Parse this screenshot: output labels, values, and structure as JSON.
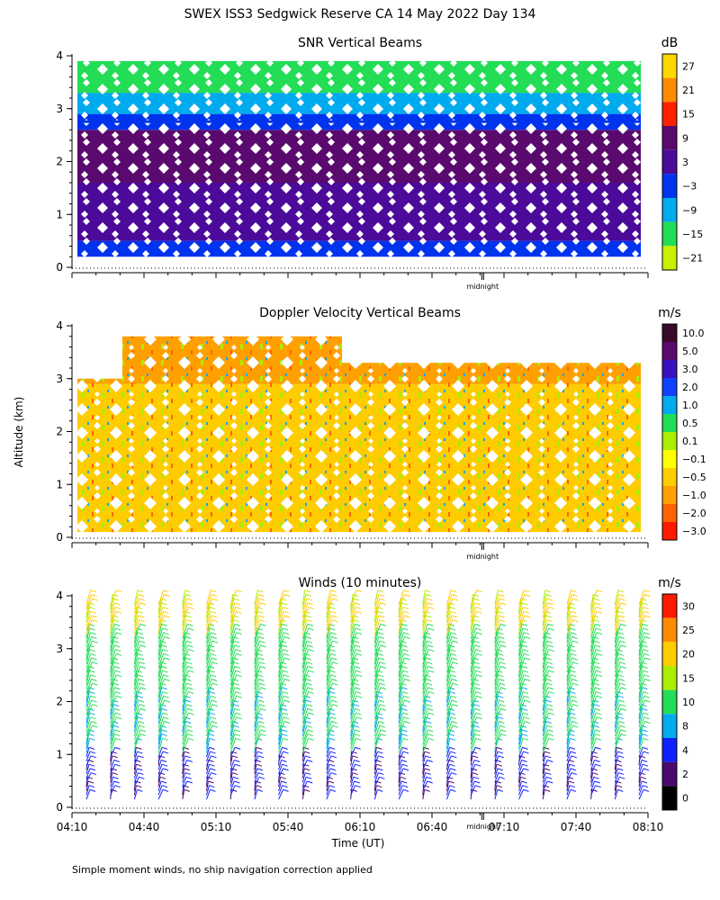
{
  "title": "SWEX ISS3 Sedgwick Reserve CA  14 May 2022 Day 134",
  "ylabel": "Altitude (km)",
  "xlabel": "Time (UT)",
  "footnote": "Simple moment winds, no ship navigation correction applied",
  "chart_data": [
    {
      "type": "heatmap",
      "title": "SNR Vertical Beams",
      "ylabel": "Altitude (km)",
      "ylim": [
        0,
        4
      ],
      "yticks": [
        "0",
        "1",
        "2",
        "3",
        "4"
      ],
      "x_tick_labels": [],
      "x_marker": "midnight",
      "colorbar_unit": "dB",
      "colorbar_labels": [
        "27",
        "21",
        "15",
        "9",
        "3",
        "−3",
        "−9",
        "−15",
        "−21"
      ],
      "colorbar_colors": [
        "#ffd700",
        "#ff8c00",
        "#ff2000",
        "#5a0a6e",
        "#4b0a9a",
        "#0033ee",
        "#00aaee",
        "#22dd55",
        "#c8f000"
      ],
      "layers": [
        {
          "alt_range": [
            0.2,
            0.5
          ],
          "level": "−3",
          "color": "#0033ee"
        },
        {
          "alt_range": [
            0.5,
            1.6
          ],
          "level": "3",
          "color": "#4b0a9a"
        },
        {
          "alt_range": [
            1.6,
            2.6
          ],
          "level": "9",
          "color": "#5a0a6e"
        },
        {
          "alt_range": [
            2.6,
            2.9
          ],
          "level": "−3",
          "color": "#0033ee"
        },
        {
          "alt_range": [
            2.9,
            3.3
          ],
          "level": "−9",
          "color": "#00aaee"
        },
        {
          "alt_range": [
            3.3,
            3.9
          ],
          "level": "−15",
          "color": "#22dd55"
        }
      ]
    },
    {
      "type": "heatmap",
      "title": "Doppler Velocity Vertical Beams",
      "ylabel": "Altitude (km)",
      "ylim": [
        0,
        4
      ],
      "yticks": [
        "0",
        "1",
        "2",
        "3",
        "4"
      ],
      "x_tick_labels": [],
      "x_marker": "midnight",
      "colorbar_unit": "m/s",
      "colorbar_labels": [
        "10.0",
        "5.0",
        "3.0",
        "2.0",
        "1.0",
        "0.5",
        "0.1",
        "−0.1",
        "−0.5",
        "−1.0",
        "−2.0",
        "−3.0"
      ],
      "colorbar_colors": [
        "#3a0a2a",
        "#5a0a6e",
        "#3a10c0",
        "#1040ff",
        "#00aaee",
        "#22dd55",
        "#aaee00",
        "#ffff00",
        "#ffcc00",
        "#ffa000",
        "#ff6400",
        "#ff1a00"
      ],
      "layers": [
        {
          "alt_range": [
            0.1,
            2.9
          ],
          "level": "−0.5",
          "color": "#ffcc00"
        },
        {
          "alt_range": [
            2.9,
            3.8
          ],
          "level": "−1.0",
          "color": "#ffa000"
        }
      ]
    },
    {
      "type": "wind_barbs",
      "title": "Winds (10 minutes)",
      "ylabel": "Altitude (km)",
      "xlabel": "Time (UT)",
      "ylim": [
        0,
        4
      ],
      "yticks": [
        "0",
        "1",
        "2",
        "3",
        "4"
      ],
      "x_tick_labels": [
        "04:10",
        "04:40",
        "05:10",
        "05:40",
        "06:10",
        "06:40",
        "07:10",
        "07:40",
        "08:10"
      ],
      "x_marker": "midnight",
      "colorbar_unit": "m/s",
      "colorbar_labels": [
        "30",
        "25",
        "20",
        "15",
        "10",
        "8",
        "4",
        "2",
        "0"
      ],
      "colorbar_colors": [
        "#ff1a00",
        "#ff8c00",
        "#ffcc00",
        "#aaee00",
        "#22dd55",
        "#00aaee",
        "#1020ff",
        "#4b0a6e",
        "#000000"
      ],
      "profiles": 24,
      "speed_by_alt_ms": [
        {
          "alt_range": [
            0.0,
            1.0
          ],
          "speed": 4
        },
        {
          "alt_range": [
            1.0,
            2.0
          ],
          "speed": 10
        },
        {
          "alt_range": [
            2.0,
            3.2
          ],
          "speed": 12
        },
        {
          "alt_range": [
            3.2,
            4.0
          ],
          "speed": 20
        }
      ]
    }
  ]
}
